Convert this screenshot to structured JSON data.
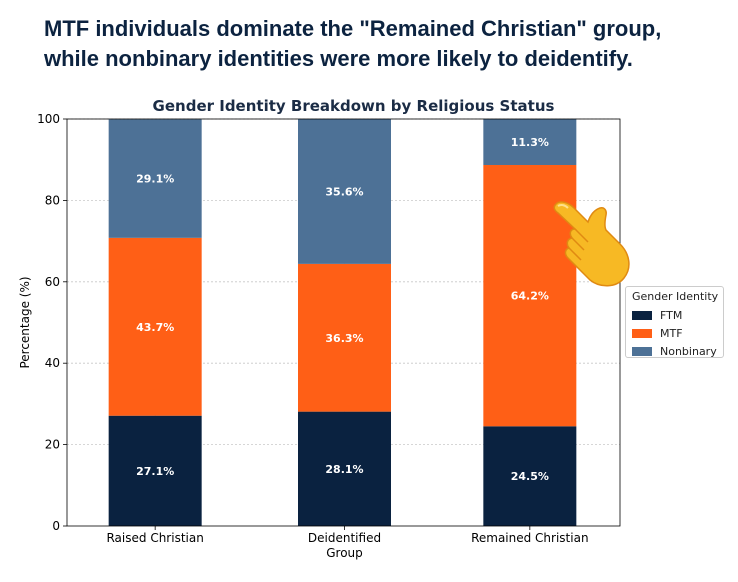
{
  "headline": {
    "line1": "MTF individuals dominate the \"Remained Christian\" group,",
    "line2": "while nonbinary identities were more likely to deidentify."
  },
  "legend": {
    "title": "Gender Identity",
    "items": [
      {
        "label": "FTM",
        "color": "#0a2240"
      },
      {
        "label": "MTF",
        "color": "#ff5f16"
      },
      {
        "label": "Nonbinary",
        "color": "#4d7196"
      }
    ]
  },
  "hand_icon": "pointing-hand-icon",
  "chart_data": {
    "type": "bar",
    "stacked": true,
    "title": "Gender Identity Breakdown by Religious Status",
    "xlabel": "Group",
    "ylabel": "Percentage (%)",
    "ylim": [
      0,
      100
    ],
    "yticks": [
      0,
      20,
      40,
      60,
      80,
      100
    ],
    "grid": true,
    "legend_position": "right",
    "categories": [
      "Raised Christian",
      "Deidentified",
      "Remained Christian"
    ],
    "series": [
      {
        "name": "FTM",
        "color": "#0a2240",
        "values": [
          27.1,
          28.1,
          24.5
        ],
        "labels": [
          "27.1%",
          "28.1%",
          "24.5%"
        ]
      },
      {
        "name": "MTF",
        "color": "#ff5f16",
        "values": [
          43.7,
          36.3,
          64.2
        ],
        "labels": [
          "43.7%",
          "36.3%",
          "64.2%"
        ]
      },
      {
        "name": "Nonbinary",
        "color": "#4d7196",
        "values": [
          29.1,
          35.6,
          11.3
        ],
        "labels": [
          "29.1%",
          "35.6%",
          "11.3%"
        ]
      }
    ]
  }
}
